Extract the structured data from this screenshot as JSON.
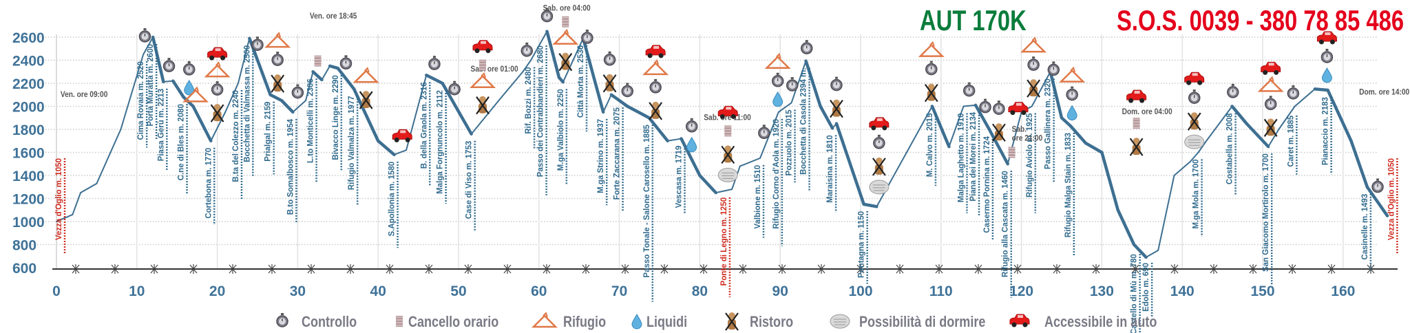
{
  "header": {
    "race_name": "AUT 170K",
    "sos": "S.O.S.  0039 - 380 78 85 486"
  },
  "colors": {
    "profile": "#3d6f91",
    "labels": "#2f6a8d",
    "highlight_labels": "#cf2a1e",
    "title": "#0b7c3c",
    "sos": "#e4001c",
    "axis_text": "#3f7298"
  },
  "chart_data": {
    "type": "line",
    "title": "",
    "xlabel": "",
    "ylabel": "",
    "xlim": [
      0,
      167
    ],
    "ylim": [
      600,
      2700
    ],
    "xticks": [
      0,
      10,
      20,
      30,
      40,
      50,
      60,
      70,
      80,
      90,
      100,
      110,
      120,
      130,
      140,
      150,
      160
    ],
    "yticks": [
      600,
      800,
      1000,
      1200,
      1400,
      1600,
      1800,
      2000,
      2200,
      2400,
      2600
    ],
    "grid": "horizontal dotted, vertical every 10",
    "profile": [
      [
        0,
        1000
      ],
      [
        2,
        1060
      ],
      [
        3,
        1250
      ],
      [
        5,
        1330
      ],
      [
        8,
        1800
      ],
      [
        10.8,
        2450
      ],
      [
        12,
        2600
      ],
      [
        13.3,
        2213
      ],
      [
        14.5,
        2220
      ],
      [
        15.8,
        2080
      ],
      [
        17,
        2000
      ],
      [
        19.2,
        1700
      ],
      [
        21,
        1950
      ],
      [
        22.6,
        2200
      ],
      [
        24,
        2590
      ],
      [
        26.6,
        2100
      ],
      [
        28,
        2050
      ],
      [
        29.4,
        1950
      ],
      [
        31,
        2050
      ],
      [
        31.9,
        2300
      ],
      [
        33,
        2230
      ],
      [
        34,
        2350
      ],
      [
        35,
        2330
      ],
      [
        37,
        2150
      ],
      [
        40,
        1700
      ],
      [
        42,
        1580
      ],
      [
        43.5,
        1620
      ],
      [
        46,
        2270
      ],
      [
        48,
        2200
      ],
      [
        51.6,
        1760
      ],
      [
        55,
        2050
      ],
      [
        58,
        2300
      ],
      [
        59,
        2400
      ],
      [
        61,
        2650
      ],
      [
        62.5,
        2250
      ],
      [
        63,
        2210
      ],
      [
        65.5,
        2590
      ],
      [
        68,
        1950
      ],
      [
        69,
        2100
      ],
      [
        71,
        2000
      ],
      [
        73.7,
        1900
      ],
      [
        76,
        1700
      ],
      [
        77.7,
        1719
      ],
      [
        80,
        1400
      ],
      [
        82,
        1250
      ],
      [
        84,
        1280
      ],
      [
        85,
        1480
      ],
      [
        87.5,
        1550
      ],
      [
        89.8,
        1950
      ],
      [
        91.4,
        2030
      ],
      [
        93.2,
        2394
      ],
      [
        95,
        2000
      ],
      [
        96.5,
        1810
      ],
      [
        97,
        1850
      ],
      [
        100.4,
        1150
      ],
      [
        102,
        1130
      ],
      [
        108.9,
        2000
      ],
      [
        111,
        1650
      ],
      [
        112.8,
        2000
      ],
      [
        114.3,
        2010
      ],
      [
        116,
        1800
      ],
      [
        118.3,
        1500
      ],
      [
        120,
        1950
      ],
      [
        121.3,
        2000
      ],
      [
        123.6,
        2300
      ],
      [
        125,
        1900
      ],
      [
        126.1,
        1830
      ],
      [
        128,
        1680
      ],
      [
        130,
        1600
      ],
      [
        132,
        1100
      ],
      [
        134,
        800
      ],
      [
        135.5,
        690
      ],
      [
        137,
        750
      ],
      [
        139,
        1400
      ],
      [
        141,
        1520
      ],
      [
        142,
        1600
      ],
      [
        143,
        1700
      ],
      [
        146.2,
        2000
      ],
      [
        148,
        1850
      ],
      [
        150.7,
        1650
      ],
      [
        152,
        1800
      ],
      [
        154,
        2000
      ],
      [
        156.5,
        2150
      ],
      [
        158.1,
        2140
      ],
      [
        161,
        1700
      ],
      [
        163,
        1300
      ],
      [
        165.5,
        1050
      ]
    ],
    "waypoints": [
      {
        "km": 0.6,
        "label": "Vezza d'Oglio m. 1050",
        "highlight": true,
        "top": true
      },
      {
        "km": 10.8,
        "label": "Cima Rovaia m. 2520"
      },
      {
        "km": 12,
        "label": "Porta Muratta m. 2600"
      },
      {
        "km": 13.3,
        "label": "Piasa Gerù m. 2213"
      },
      {
        "km": 15.8,
        "label": "C.ne di Bles m. 2080"
      },
      {
        "km": 19.2,
        "label": "Cortebona m. 1770"
      },
      {
        "km": 22.6,
        "label": "B.ta del Colezzo m. 2240"
      },
      {
        "km": 24,
        "label": "Bocchetta di Valmassa m. 2500"
      },
      {
        "km": 26.6,
        "label": "Prialgal m. 2159"
      },
      {
        "km": 29.4,
        "label": "B.to Somalbosco m. 1954"
      },
      {
        "km": 31.9,
        "label": "L.to Monticelli m. 2306"
      },
      {
        "km": 35,
        "label": "Bivacco Linge m. 2290"
      },
      {
        "km": 37,
        "label": "Rifugio Valmalza m. 1977"
      },
      {
        "km": 42,
        "label": "S.Apollonia m. 1580"
      },
      {
        "km": 46,
        "label": "B. della Graola m. 2316"
      },
      {
        "km": 48,
        "label": "Malga Forgnuncolo m. 2112"
      },
      {
        "km": 51.6,
        "label": "Case di Viso m. 1753"
      },
      {
        "km": 59,
        "label": "Rif. Bozzi m. 2480"
      },
      {
        "km": 60.5,
        "label": "Passo dei Contrabbandieri m. 2680"
      },
      {
        "km": 63,
        "label": "M.ga Valbiolo m. 2250"
      },
      {
        "km": 65.5,
        "label": "Città Morta m. 2536"
      },
      {
        "km": 68,
        "label": "M.ga Strino m. 1937"
      },
      {
        "km": 70,
        "label": "Forte Zaccarana m. 2075"
      },
      {
        "km": 73.7,
        "label": "Passo Tonale - Salone Carosello m. 1885"
      },
      {
        "km": 77.7,
        "label": "Vescasa m. 1719"
      },
      {
        "km": 83.3,
        "label": "Ponte di Legno m. 1250",
        "highlight": true
      },
      {
        "km": 87.5,
        "label": "Valbione m. 1510"
      },
      {
        "km": 89.8,
        "label": "Rifugio Corno d'Aola m. 1920"
      },
      {
        "km": 91.4,
        "label": "Pozzuolo m. 2015"
      },
      {
        "km": 93.2,
        "label": "Bocchetta di Casola 2394 m."
      },
      {
        "km": 96.5,
        "label": "Maraisina m. 1810"
      },
      {
        "km": 100.4,
        "label": "Pontagna m. 1150"
      },
      {
        "km": 108.9,
        "label": "M. Calvo m. 2015"
      },
      {
        "km": 112.8,
        "label": "Malga Laghetto m. 1910"
      },
      {
        "km": 114.3,
        "label": "Piana dei Morei m. 2134"
      },
      {
        "km": 116,
        "label": "Casermo Pornina m. 1724"
      },
      {
        "km": 118.3,
        "label": "Rifugio alla Cascata m. 1460"
      },
      {
        "km": 121.3,
        "label": "Rifugio Aviolo m. 1925"
      },
      {
        "km": 123.6,
        "label": "Passo Gallinera m. 2320"
      },
      {
        "km": 126.1,
        "label": "Rifugio Malga Stain m. 1833"
      },
      {
        "km": 134.3,
        "label": "Castello di Mù m. 780"
      },
      {
        "km": 135.8,
        "label": "Edolo m. 690"
      },
      {
        "km": 142,
        "label": "M.ga Mola m. 1700"
      },
      {
        "km": 146.2,
        "label": "Costabella m. 2008"
      },
      {
        "km": 150.7,
        "label": "San Giacomo Mortirolo m. 1700"
      },
      {
        "km": 153.8,
        "label": "Caret m. 1885"
      },
      {
        "km": 158.1,
        "label": "Pianaccio m. 2183"
      },
      {
        "km": 163,
        "label": "Casinelle m. 1493"
      },
      {
        "km": 166.3,
        "label": "Vezza d'Oglio m. 1050",
        "highlight": true,
        "top": true
      }
    ],
    "time_annotations": [
      {
        "km": 0.5,
        "elev": 2080,
        "text": "Ven. ore 09:00"
      },
      {
        "km": 31.5,
        "elev": 2760,
        "text": "Ven. ore 18:45"
      },
      {
        "km": 51.5,
        "elev": 2300,
        "text": "Sab. ore 01:00"
      },
      {
        "km": 60.5,
        "elev": 2830,
        "text": "Sab. ore 04:00"
      },
      {
        "km": 80.5,
        "elev": 1880,
        "text": "Sab. ore 11:00"
      },
      {
        "km": 118.8,
        "elev": 1780,
        "text": "Sab."
      },
      {
        "km": 118.8,
        "elev": 1700,
        "text": "ore 21:00"
      },
      {
        "km": 132.5,
        "elev": 1930,
        "text": "Dom. ore 04:00"
      },
      {
        "km": 162,
        "elev": 2100,
        "text": "Dom. ore 14:00"
      }
    ],
    "icon_stacks": [
      {
        "km": 11,
        "icons": [
          "controllo"
        ]
      },
      {
        "km": 14,
        "icons": [
          "controllo"
        ]
      },
      {
        "km": 16.5,
        "icons": [
          "controllo",
          "liquidi"
        ]
      },
      {
        "km": 17.3,
        "icons": [
          "rifugio"
        ]
      },
      {
        "km": 20,
        "icons": [
          "auto",
          "rifugio",
          "controllo",
          "ristoro"
        ]
      },
      {
        "km": 25,
        "icons": [
          "controllo"
        ]
      },
      {
        "km": 27.5,
        "icons": [
          "rifugio",
          "controllo",
          "ristoro"
        ]
      },
      {
        "km": 30,
        "icons": [
          "controllo"
        ]
      },
      {
        "km": 32.5,
        "icons": [
          "cancello"
        ]
      },
      {
        "km": 36,
        "icons": [
          "controllo"
        ]
      },
      {
        "km": 38.5,
        "icons": [
          "rifugio",
          "ristoro"
        ]
      },
      {
        "km": 43,
        "icons": [
          "auto"
        ]
      },
      {
        "km": 47,
        "icons": [
          "controllo"
        ]
      },
      {
        "km": 49.5,
        "icons": [
          "controllo"
        ]
      },
      {
        "km": 53,
        "icons": [
          "auto",
          "cancello",
          "rifugio",
          "ristoro"
        ]
      },
      {
        "km": 58.5,
        "icons": [
          "controllo"
        ]
      },
      {
        "km": 61,
        "icons": [
          "controllo"
        ]
      },
      {
        "km": 63.3,
        "icons": [
          "cancello",
          "rifugio",
          "ristoro"
        ]
      },
      {
        "km": 66,
        "icons": [
          "controllo"
        ]
      },
      {
        "km": 68.8,
        "icons": [
          "controllo",
          "ristoro"
        ]
      },
      {
        "km": 71,
        "icons": [
          "controllo"
        ]
      },
      {
        "km": 74.5,
        "icons": [
          "auto",
          "rifugio",
          "controllo",
          "ristoro"
        ]
      },
      {
        "km": 79,
        "icons": [
          "controllo",
          "liquidi"
        ]
      },
      {
        "km": 83.5,
        "icons": [
          "auto",
          "cancello",
          "ristoro",
          "dormire"
        ]
      },
      {
        "km": 88,
        "icons": [
          "controllo"
        ]
      },
      {
        "km": 89.7,
        "icons": [
          "rifugio",
          "controllo",
          "liquidi"
        ]
      },
      {
        "km": 91.5,
        "icons": [
          "controllo"
        ]
      },
      {
        "km": 93.3,
        "icons": [
          "controllo"
        ]
      },
      {
        "km": 97,
        "icons": [
          "controllo",
          "ristoro"
        ]
      },
      {
        "km": 102.3,
        "icons": [
          "auto",
          "controllo",
          "ristoro",
          "dormire"
        ]
      },
      {
        "km": 108.8,
        "icons": [
          "rifugio",
          "controllo",
          "ristoro"
        ]
      },
      {
        "km": 113.5,
        "icons": [
          "controllo"
        ]
      },
      {
        "km": 115.5,
        "icons": [
          "controllo"
        ]
      },
      {
        "km": 117.2,
        "icons": [
          "controllo",
          "ristoro"
        ]
      },
      {
        "km": 119.6,
        "icons": [
          "auto"
        ]
      },
      {
        "km": 118.8,
        "icons": [
          "cancello"
        ],
        "elev": 1600
      },
      {
        "km": 121.5,
        "icons": [
          "rifugio",
          "controllo",
          "ristoro"
        ]
      },
      {
        "km": 124,
        "icons": [
          "controllo"
        ]
      },
      {
        "km": 126.3,
        "icons": [
          "rifugio",
          "controllo",
          "liquidi"
        ]
      },
      {
        "km": 134.3,
        "icons": [
          "auto"
        ],
        "elev": 2080
      },
      {
        "km": 134.3,
        "icons": [
          "cancello",
          "ristoro"
        ],
        "elev": 1650
      },
      {
        "km": 141.5,
        "icons": [
          "auto",
          "controllo",
          "ristoro",
          "dormire"
        ]
      },
      {
        "km": 146.3,
        "icons": [
          "controllo"
        ]
      },
      {
        "km": 151,
        "icons": [
          "auto",
          "rifugio",
          "controllo",
          "ristoro"
        ]
      },
      {
        "km": 153.8,
        "icons": [
          "controllo"
        ]
      },
      {
        "km": 158,
        "icons": [
          "auto",
          "controllo",
          "liquidi"
        ]
      },
      {
        "km": 164.3,
        "icons": [
          "controllo"
        ]
      }
    ]
  },
  "legend": [
    {
      "icon": "controllo",
      "label": "Controllo"
    },
    {
      "icon": "cancello",
      "label": "Cancello orario"
    },
    {
      "icon": "rifugio",
      "label": "Rifugio"
    },
    {
      "icon": "liquidi",
      "label": "Liquidi"
    },
    {
      "icon": "ristoro",
      "label": "Ristoro"
    },
    {
      "icon": "dormire",
      "label": "Possibilità di dormire"
    },
    {
      "icon": "auto",
      "label": "Accessibile in auto"
    }
  ]
}
